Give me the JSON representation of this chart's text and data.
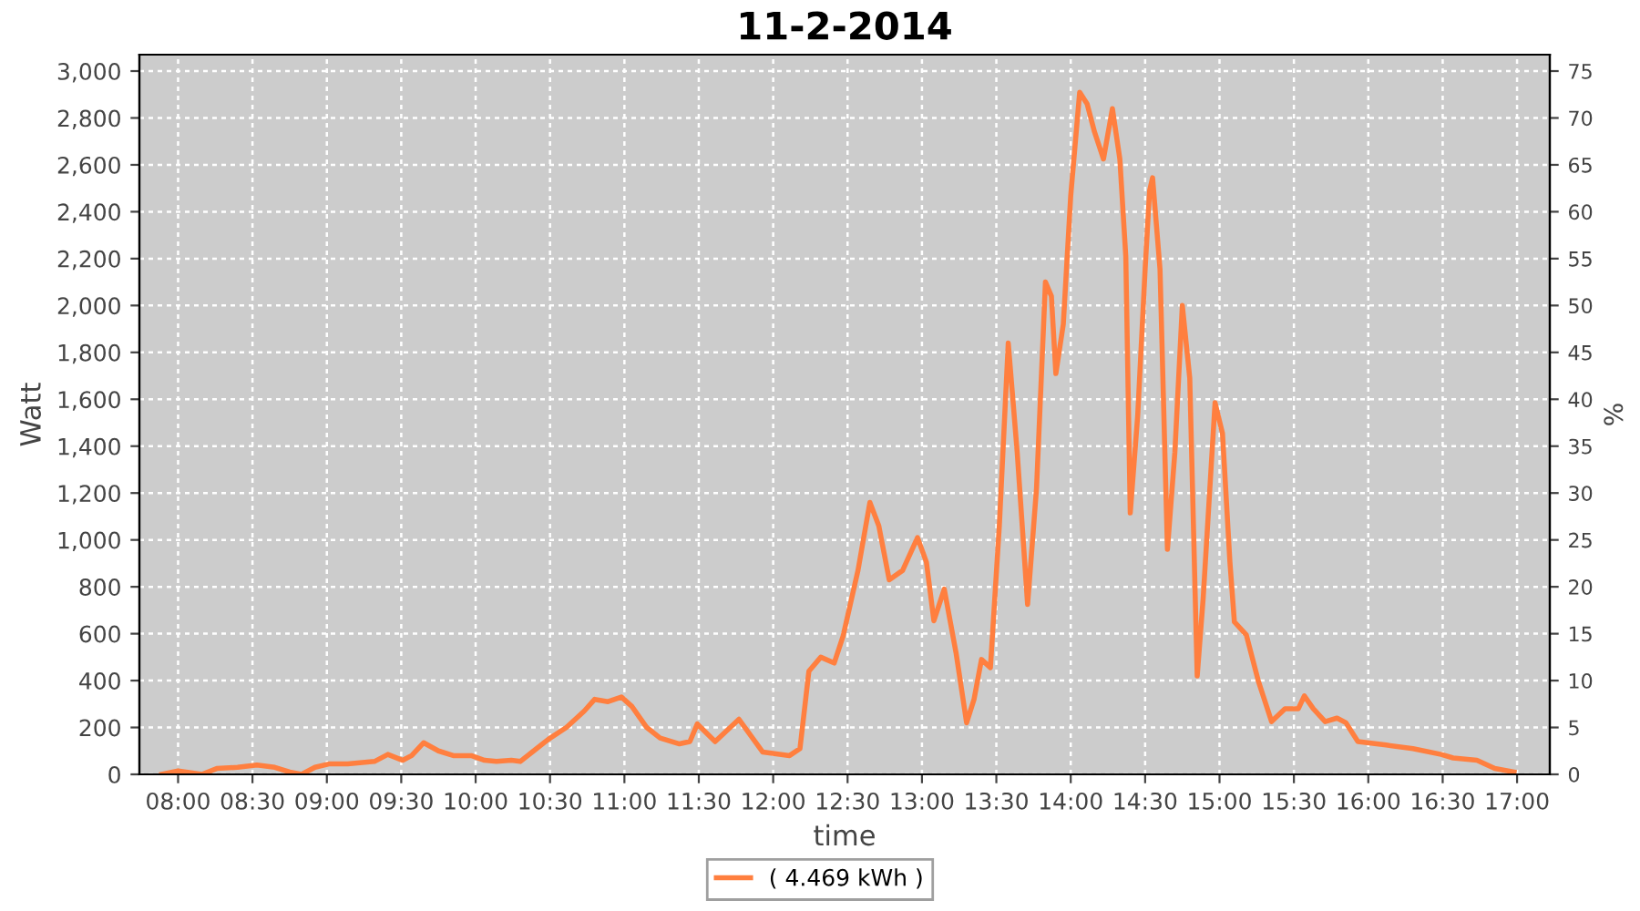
{
  "chart_data": {
    "type": "line",
    "title": "11-2-2014",
    "xlabel": "time",
    "ylabel": "Watt",
    "y2label": "%",
    "xlim": [
      7.74,
      17.22
    ],
    "xticks": [
      {
        "value": 8,
        "label": "08:00"
      },
      {
        "value": 8.5,
        "label": "08:30"
      },
      {
        "value": 9,
        "label": "09:00"
      },
      {
        "value": 9.5,
        "label": "09:30"
      },
      {
        "value": 10,
        "label": "10:00"
      },
      {
        "value": 10.5,
        "label": "10:30"
      },
      {
        "value": 11,
        "label": "11:00"
      },
      {
        "value": 11.5,
        "label": "11:30"
      },
      {
        "value": 12,
        "label": "12:00"
      },
      {
        "value": 12.5,
        "label": "12:30"
      },
      {
        "value": 13,
        "label": "13:00"
      },
      {
        "value": 13.5,
        "label": "13:30"
      },
      {
        "value": 14,
        "label": "14:00"
      },
      {
        "value": 14.5,
        "label": "14:30"
      },
      {
        "value": 15,
        "label": "15:00"
      },
      {
        "value": 15.5,
        "label": "15:30"
      },
      {
        "value": 16,
        "label": "16:00"
      },
      {
        "value": 16.5,
        "label": "16:30"
      },
      {
        "value": 17,
        "label": "17:00"
      }
    ],
    "ylim": [
      0,
      3070
    ],
    "yticks": [
      {
        "value": 0,
        "label": "0"
      },
      {
        "value": 200,
        "label": "200"
      },
      {
        "value": 400,
        "label": "400"
      },
      {
        "value": 600,
        "label": "600"
      },
      {
        "value": 800,
        "label": "800"
      },
      {
        "value": 1000,
        "label": "1,000"
      },
      {
        "value": 1200,
        "label": "1,200"
      },
      {
        "value": 1400,
        "label": "1,400"
      },
      {
        "value": 1600,
        "label": "1,600"
      },
      {
        "value": 1800,
        "label": "1,800"
      },
      {
        "value": 2000,
        "label": "2,000"
      },
      {
        "value": 2200,
        "label": "2,200"
      },
      {
        "value": 2400,
        "label": "2,400"
      },
      {
        "value": 2600,
        "label": "2,600"
      },
      {
        "value": 2800,
        "label": "2,800"
      },
      {
        "value": 3000,
        "label": "3,000"
      }
    ],
    "y2lim": [
      0,
      76.75
    ],
    "y2ticks": [
      0,
      5,
      10,
      15,
      20,
      25,
      30,
      35,
      40,
      45,
      50,
      55,
      60,
      65,
      70,
      75
    ],
    "grid": true,
    "legend": "bottom",
    "marker": "none",
    "line_style": "solid",
    "series": [
      {
        "name": "( 4.469 kWh )",
        "color": "#ff7f3f",
        "x": [
          7.89,
          8.0,
          8.16,
          8.26,
          8.4,
          8.53,
          8.65,
          8.75,
          8.83,
          8.92,
          9.02,
          9.14,
          9.32,
          9.41,
          9.51,
          9.57,
          9.65,
          9.75,
          9.85,
          9.97,
          10.06,
          10.14,
          10.24,
          10.3,
          10.39,
          10.49,
          10.61,
          10.73,
          10.8,
          10.89,
          10.98,
          11.05,
          11.15,
          11.24,
          11.37,
          11.44,
          11.49,
          11.61,
          11.77,
          11.93,
          12.11,
          12.18,
          12.24,
          12.32,
          12.41,
          12.47,
          12.57,
          12.65,
          12.71,
          12.78,
          12.87,
          12.97,
          13.03,
          13.08,
          13.15,
          13.23,
          13.3,
          13.35,
          13.4,
          13.46,
          13.52,
          13.58,
          13.64,
          13.71,
          13.77,
          13.83,
          13.87,
          13.9,
          13.95,
          14.0,
          14.06,
          14.11,
          14.16,
          14.22,
          14.28,
          14.33,
          14.37,
          14.4,
          14.45,
          14.5,
          14.53,
          14.55,
          14.6,
          14.65,
          14.7,
          14.75,
          14.8,
          14.85,
          14.89,
          14.97,
          15.02,
          15.07,
          15.1,
          15.18,
          15.26,
          15.35,
          15.44,
          15.53,
          15.57,
          15.63,
          15.71,
          15.79,
          15.85,
          15.93,
          16.12,
          16.3,
          16.49,
          16.57,
          16.73,
          16.85,
          16.98
        ],
        "values": [
          0,
          15,
          0,
          25,
          30,
          40,
          30,
          10,
          0,
          30,
          45,
          45,
          55,
          85,
          60,
          80,
          135,
          100,
          80,
          80,
          60,
          55,
          60,
          55,
          100,
          150,
          200,
          270,
          320,
          310,
          330,
          290,
          200,
          155,
          130,
          140,
          215,
          140,
          235,
          95,
          80,
          110,
          440,
          500,
          475,
          590,
          870,
          1160,
          1060,
          830,
          870,
          1010,
          905,
          655,
          790,
          515,
          220,
          320,
          490,
          455,
          1060,
          1840,
          1375,
          725,
          1220,
          2100,
          2040,
          1710,
          1920,
          2470,
          2910,
          2860,
          2740,
          2625,
          2840,
          2625,
          2210,
          1115,
          1530,
          2155,
          2490,
          2545,
          2155,
          960,
          1375,
          2000,
          1690,
          420,
          750,
          1585,
          1455,
          905,
          650,
          595,
          400,
          225,
          280,
          280,
          335,
          280,
          225,
          240,
          220,
          140,
          125,
          110,
          85,
          70,
          60,
          25,
          10
        ]
      }
    ]
  }
}
